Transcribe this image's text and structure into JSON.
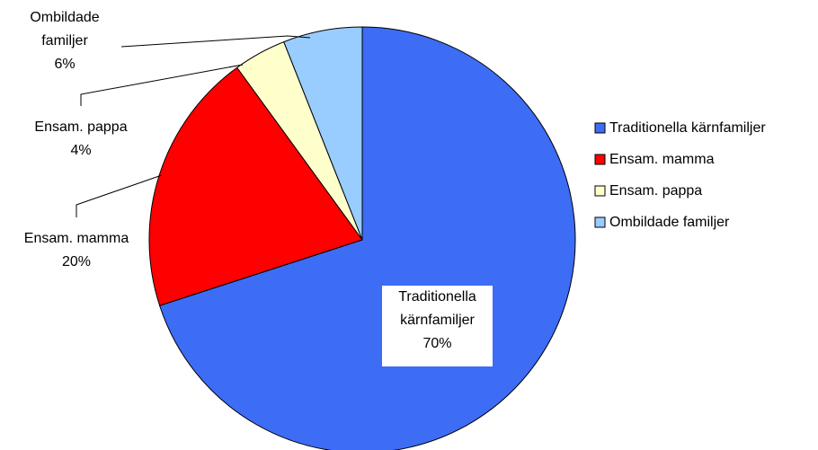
{
  "chart_data": {
    "type": "pie",
    "categories": [
      "Traditionella kärnfamiljer",
      "Ensam. mamma",
      "Ensam. pappa",
      "Ombildade familjer"
    ],
    "values": [
      70,
      20,
      4,
      6
    ],
    "value_labels": [
      "70%",
      "20%",
      "4%",
      "6%"
    ],
    "colors": [
      "#3d6cf5",
      "#ff0000",
      "#ffffcc",
      "#99ccff"
    ],
    "legend": "right"
  }
}
